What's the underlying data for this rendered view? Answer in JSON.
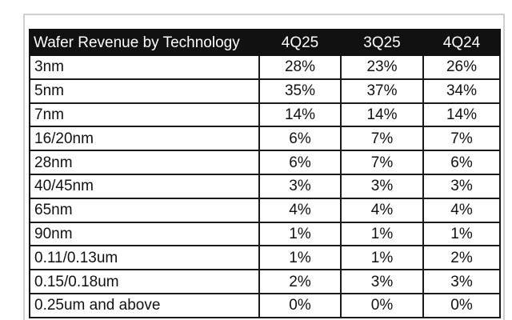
{
  "chart_data": {
    "type": "table",
    "title": "Wafer Revenue by Technology",
    "columns": [
      "4Q25",
      "3Q25",
      "4Q24"
    ],
    "rows": [
      {
        "technology": "3nm",
        "values": [
          "28%",
          "23%",
          "26%"
        ]
      },
      {
        "technology": "5nm",
        "values": [
          "35%",
          "37%",
          "34%"
        ]
      },
      {
        "technology": "7nm",
        "values": [
          "14%",
          "14%",
          "14%"
        ]
      },
      {
        "technology": "16/20nm",
        "values": [
          "6%",
          "7%",
          "7%"
        ]
      },
      {
        "technology": "28nm",
        "values": [
          "6%",
          "7%",
          "6%"
        ]
      },
      {
        "technology": "40/45nm",
        "values": [
          "3%",
          "3%",
          "3%"
        ]
      },
      {
        "technology": "65nm",
        "values": [
          "4%",
          "4%",
          "4%"
        ]
      },
      {
        "technology": "90nm",
        "values": [
          "1%",
          "1%",
          "1%"
        ]
      },
      {
        "technology": "0.11/0.13um",
        "values": [
          "1%",
          "1%",
          "2%"
        ]
      },
      {
        "technology": "0.15/0.18um",
        "values": [
          "2%",
          "3%",
          "3%"
        ]
      },
      {
        "technology": "0.25um and above",
        "values": [
          "0%",
          "0%",
          "0%"
        ]
      }
    ]
  },
  "colors": {
    "header_background": "#111111",
    "header_text": "#ffffff",
    "grid": "#1a1a1a",
    "frame": "#cfcfcf"
  }
}
